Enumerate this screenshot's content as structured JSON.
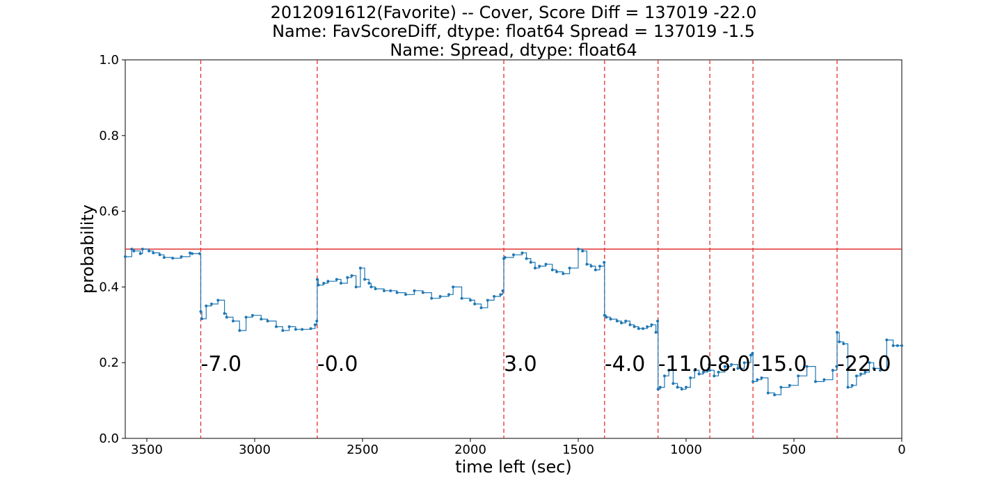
{
  "chart_data": {
    "type": "line",
    "title_lines": [
      "2012091612(Favorite) -- Cover, Score Diff = 137019   -22.0",
      "Name: FavScoreDiff, dtype: float64 Spread = 137019   -1.5",
      "Name: Spread, dtype: float64"
    ],
    "xlabel": "time left (sec)",
    "ylabel": "probability",
    "xlim": [
      3600,
      0
    ],
    "ylim": [
      0.0,
      1.0
    ],
    "x_ticks": [
      3500,
      3000,
      2500,
      2000,
      1500,
      1000,
      500,
      0
    ],
    "y_ticks": [
      "0.0",
      "0.2",
      "0.4",
      "0.6",
      "0.8",
      "1.0"
    ],
    "grid": false,
    "reference_line": {
      "y": 0.5,
      "color": "#e03030"
    },
    "vertical_markers": {
      "color": "#e03030",
      "style": "dashed",
      "x": [
        3250,
        2710,
        1845,
        1378,
        1130,
        890,
        690,
        300
      ]
    },
    "annotations": [
      {
        "x": 3250,
        "y": 0.2,
        "text": "-7.0"
      },
      {
        "x": 2710,
        "y": 0.2,
        "text": "-0.0"
      },
      {
        "x": 1845,
        "y": 0.2,
        "text": "3.0"
      },
      {
        "x": 1378,
        "y": 0.2,
        "text": "-4.0"
      },
      {
        "x": 1130,
        "y": 0.2,
        "text": "-11.0"
      },
      {
        "x": 890,
        "y": 0.2,
        "text": "-8.0"
      },
      {
        "x": 690,
        "y": 0.2,
        "text": "-15.0"
      },
      {
        "x": 300,
        "y": 0.2,
        "text": "-22.0"
      }
    ],
    "series": [
      {
        "color": "#1f77b4",
        "x": [
          3600,
          3570,
          3560,
          3530,
          3520,
          3490,
          3470,
          3440,
          3420,
          3380,
          3340,
          3300,
          3290,
          3255,
          3250,
          3245,
          3225,
          3200,
          3170,
          3140,
          3130,
          3100,
          3070,
          3040,
          3010,
          2970,
          2940,
          2900,
          2870,
          2840,
          2810,
          2780,
          2740,
          2720,
          2712,
          2710,
          2705,
          2680,
          2660,
          2620,
          2600,
          2570,
          2550,
          2530,
          2510,
          2490,
          2470,
          2460,
          2440,
          2400,
          2370,
          2340,
          2300,
          2260,
          2220,
          2180,
          2140,
          2100,
          2080,
          2040,
          2000,
          1980,
          1950,
          1920,
          1890,
          1860,
          1850,
          1845,
          1840,
          1800,
          1760,
          1740,
          1720,
          1700,
          1680,
          1650,
          1620,
          1600,
          1570,
          1540,
          1500,
          1480,
          1460,
          1440,
          1420,
          1400,
          1380,
          1378,
          1370,
          1350,
          1320,
          1300,
          1280,
          1260,
          1240,
          1220,
          1200,
          1180,
          1160,
          1140,
          1132,
          1130,
          1120,
          1100,
          1080,
          1060,
          1040,
          1020,
          1000,
          980,
          960,
          940,
          920,
          900,
          892,
          890,
          870,
          850,
          820,
          790,
          760,
          730,
          700,
          692,
          690,
          670,
          650,
          620,
          590,
          560,
          520,
          480,
          440,
          400,
          360,
          320,
          302,
          300,
          290,
          270,
          250,
          230,
          210,
          190,
          170,
          150,
          130,
          100,
          70,
          40,
          20,
          0
        ],
        "y": [
          0.48,
          0.5,
          0.495,
          0.488,
          0.5,
          0.495,
          0.49,
          0.485,
          0.478,
          0.476,
          0.48,
          0.49,
          0.488,
          0.488,
          0.335,
          0.316,
          0.35,
          0.355,
          0.365,
          0.33,
          0.32,
          0.31,
          0.285,
          0.32,
          0.325,
          0.315,
          0.31,
          0.295,
          0.285,
          0.295,
          0.288,
          0.288,
          0.29,
          0.3,
          0.31,
          0.42,
          0.405,
          0.41,
          0.415,
          0.42,
          0.41,
          0.425,
          0.43,
          0.4,
          0.45,
          0.42,
          0.41,
          0.4,
          0.395,
          0.39,
          0.39,
          0.385,
          0.38,
          0.39,
          0.385,
          0.37,
          0.375,
          0.38,
          0.4,
          0.37,
          0.365,
          0.355,
          0.345,
          0.365,
          0.375,
          0.38,
          0.39,
          0.475,
          0.478,
          0.485,
          0.49,
          0.475,
          0.465,
          0.45,
          0.455,
          0.46,
          0.445,
          0.44,
          0.435,
          0.45,
          0.5,
          0.495,
          0.46,
          0.455,
          0.445,
          0.455,
          0.465,
          0.325,
          0.32,
          0.315,
          0.31,
          0.305,
          0.31,
          0.3,
          0.295,
          0.29,
          0.29,
          0.295,
          0.3,
          0.28,
          0.31,
          0.13,
          0.135,
          0.165,
          0.18,
          0.145,
          0.135,
          0.13,
          0.135,
          0.16,
          0.18,
          0.17,
          0.175,
          0.18,
          0.195,
          0.18,
          0.165,
          0.175,
          0.19,
          0.195,
          0.185,
          0.2,
          0.22,
          0.225,
          0.15,
          0.155,
          0.16,
          0.12,
          0.115,
          0.135,
          0.14,
          0.165,
          0.19,
          0.15,
          0.155,
          0.18,
          0.19,
          0.28,
          0.255,
          0.25,
          0.135,
          0.14,
          0.165,
          0.17,
          0.175,
          0.2,
          0.185,
          0.18,
          0.26,
          0.245,
          0.245,
          0.245
        ]
      }
    ]
  }
}
